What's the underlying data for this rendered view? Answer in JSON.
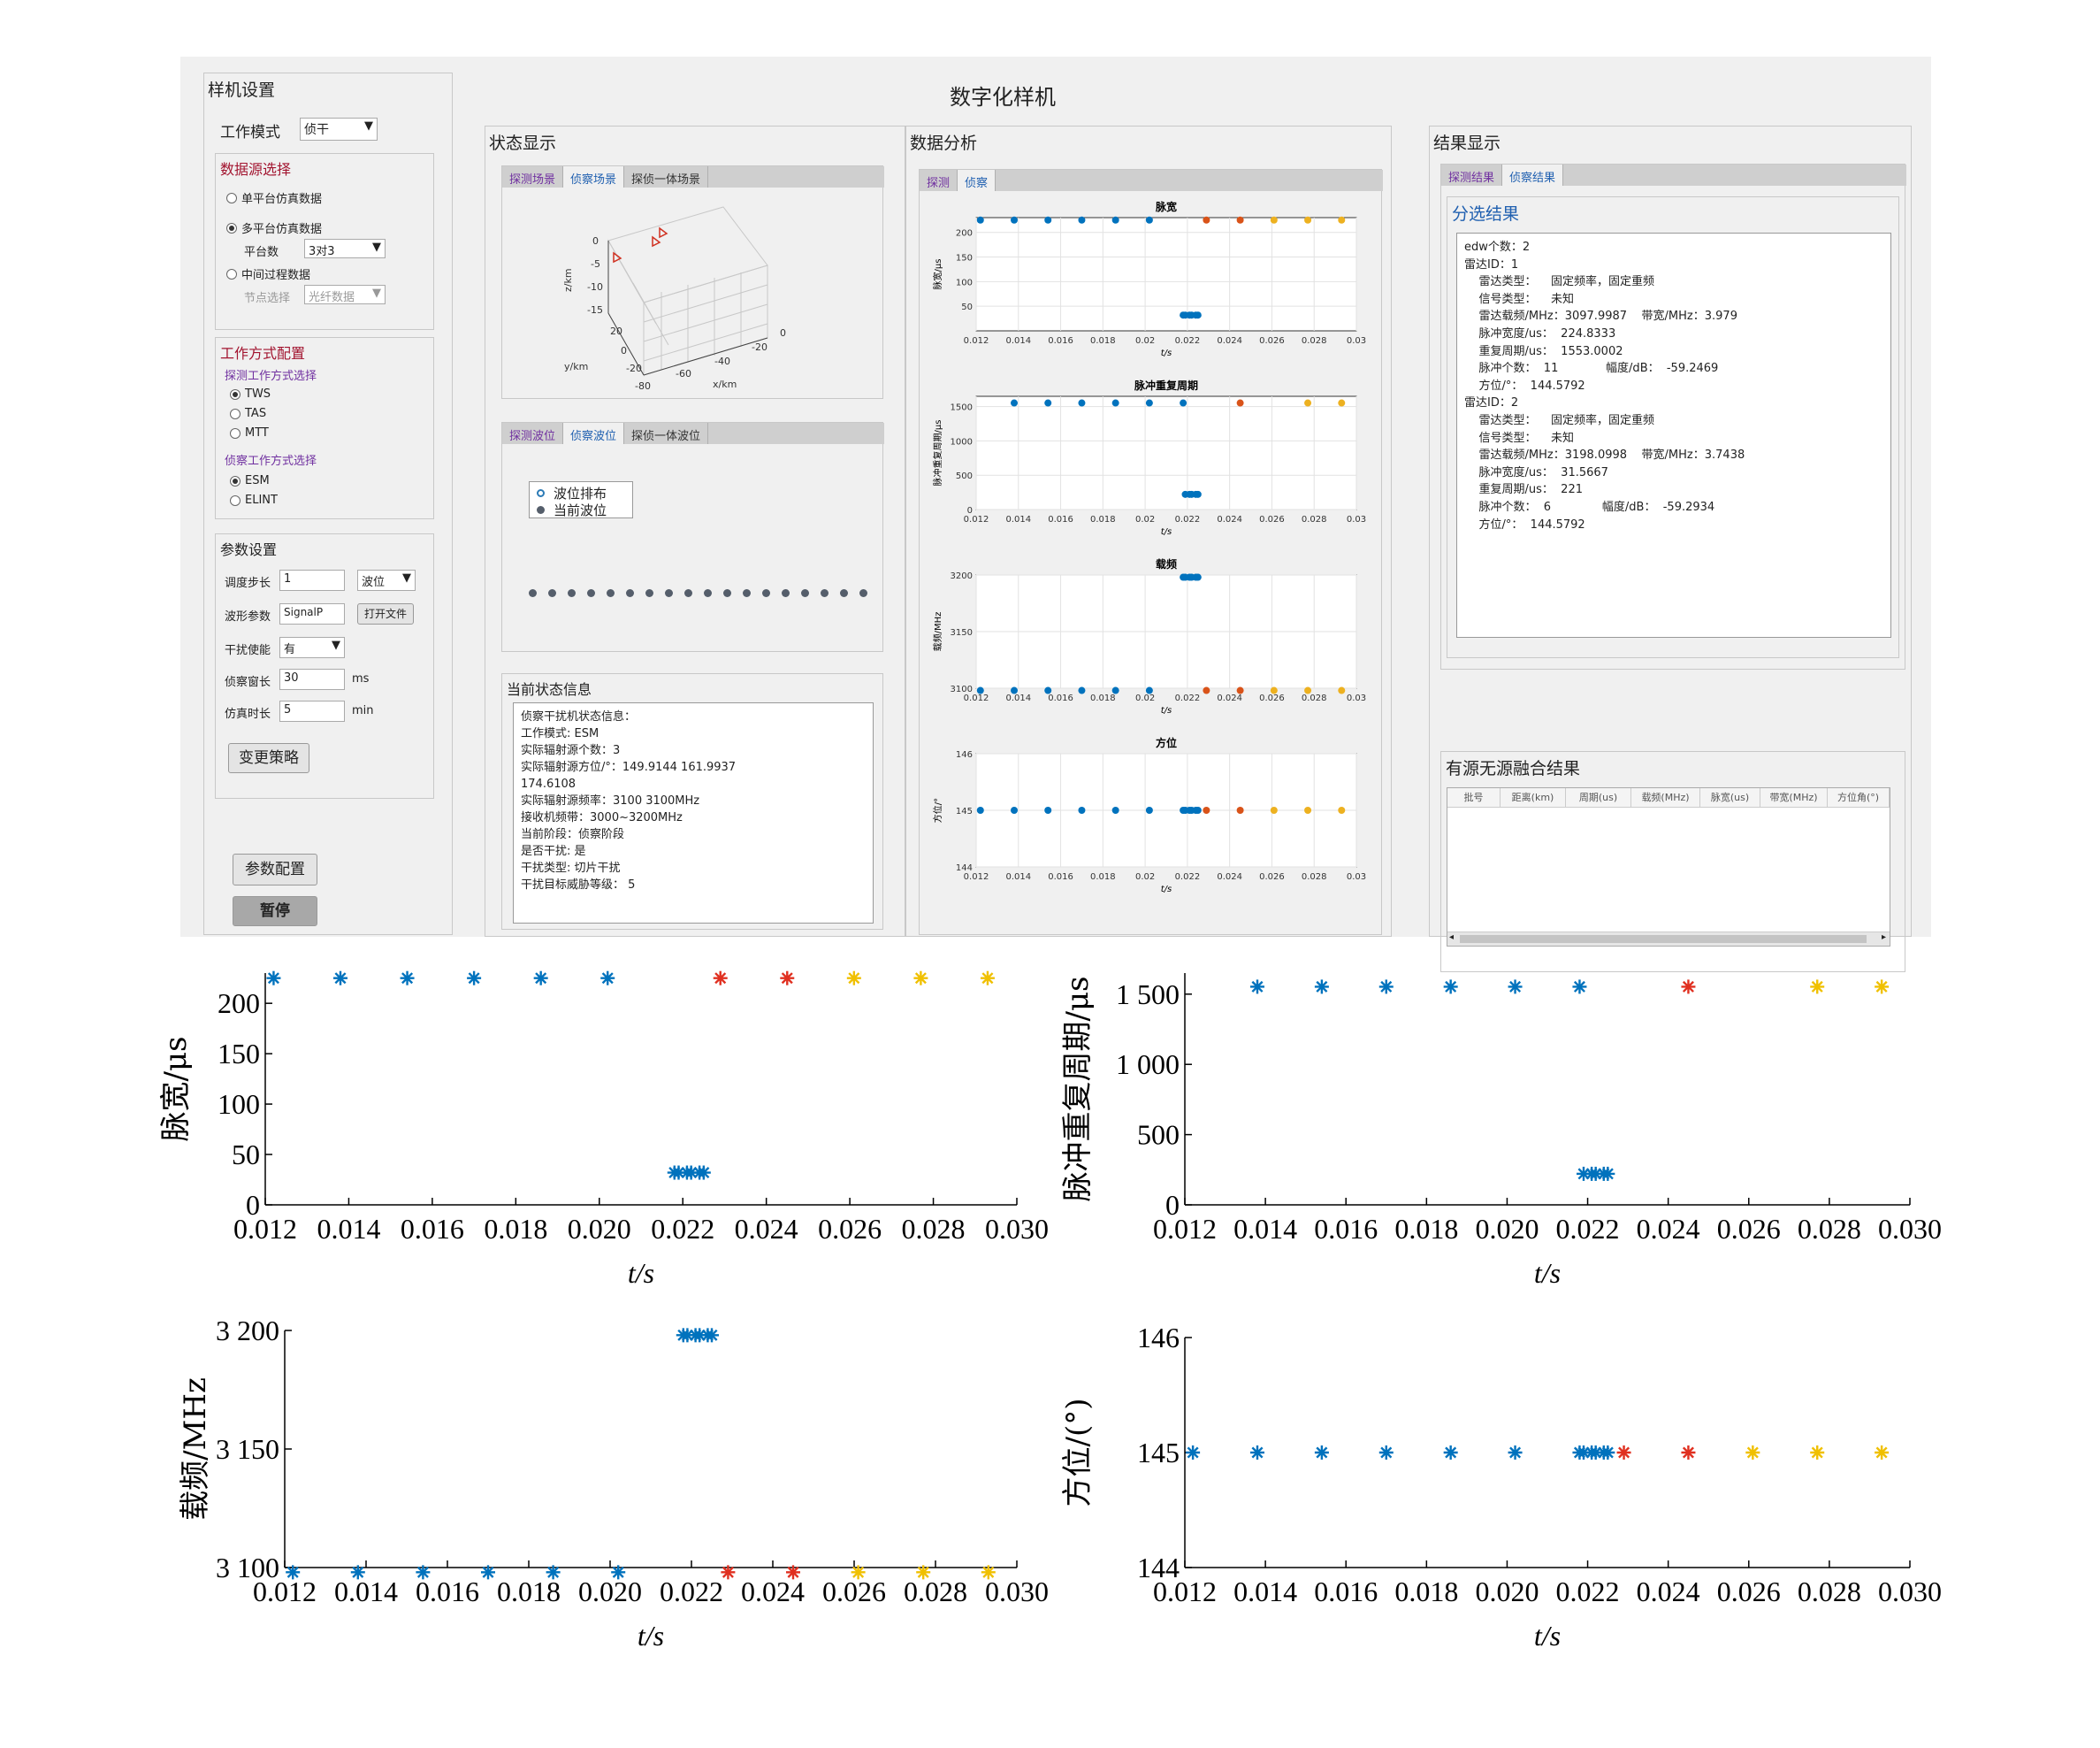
{
  "app": {
    "title": "数字化样机"
  },
  "settings": {
    "title": "样机设置",
    "mode_label": "工作模式",
    "mode_value": "侦干",
    "source": {
      "title": "数据源选择",
      "single": "单平台仿真数据",
      "multi": "多平台仿真数据",
      "platform_label": "平台数",
      "platform_value": "3对3",
      "middle": "中间过程数据",
      "node_label": "节点选择",
      "node_value": "光纤数据"
    },
    "work": {
      "title": "工作方式配置",
      "detect_title": "探测工作方式选择",
      "tws": "TWS",
      "tas": "TAS",
      "mtt": "MTT",
      "recon_title": "侦察工作方式选择",
      "esm": "ESM",
      "elint": "ELINT"
    },
    "params": {
      "title": "参数设置",
      "step_label": "调度步长",
      "step_value": "1",
      "step_unit": "波位",
      "wave_label": "波形参数",
      "wave_value": "SignalP",
      "open_file": "打开文件",
      "jam_label": "干扰使能",
      "jam_value": "有",
      "window_label": "侦察窗长",
      "window_value": "30",
      "window_unit": "ms",
      "simtime_label": "仿真时长",
      "simtime_value": "5",
      "simtime_unit": "min",
      "change_btn": "变更策略"
    },
    "config_btn": "参数配置",
    "pause_btn": "暂停"
  },
  "status": {
    "title": "状态显示",
    "scene_tabs": [
      "探测场景",
      "侦察场景",
      "探侦一体场景"
    ],
    "scene_axes": {
      "z": "z/km",
      "y": "y/km",
      "x": "x/km",
      "zticks": [
        "0",
        "-5",
        "-10",
        "-15"
      ],
      "yticks": [
        "20",
        "0",
        "-20"
      ],
      "xticks": [
        "-80",
        "-60",
        "-40",
        "-20",
        "0"
      ]
    },
    "wave_tabs": [
      "探测波位",
      "侦察波位",
      "探侦一体波位"
    ],
    "legend": [
      "波位排布",
      "当前波位"
    ],
    "info_title": "当前状态信息",
    "info_lines": [
      "侦察干扰机状态信息：",
      "工作模式: ESM",
      "实际辐射源个数：3",
      "实际辐射源方位/°：149.9144    161.9937",
      "174.6108",
      "实际辐射源频率：3100  3100MHz",
      "接收机频带：3000~3200MHz",
      "当前阶段：侦察阶段",
      "是否干扰: 是",
      "干扰类型: 切片干扰",
      "干扰目标威胁等级： 5"
    ]
  },
  "analysis": {
    "title": "数据分析",
    "tabs": [
      "探测",
      "侦察"
    ],
    "xlabel": "t/s",
    "xticks": [
      "0.012",
      "0.014",
      "0.016",
      "0.018",
      "0.02",
      "0.022",
      "0.024",
      "0.026",
      "0.028",
      "0.03"
    ],
    "plots": [
      {
        "title": "脉宽",
        "ylabel": "脉宽/μs",
        "yticks": [
          "200",
          "150",
          "100",
          "50"
        ]
      },
      {
        "title": "脉冲重复周期",
        "ylabel": "脉冲重复周期/μs",
        "yticks": [
          "1500",
          "1000",
          "500",
          "0"
        ]
      },
      {
        "title": "载频",
        "ylabel": "载频/MHz",
        "yticks": [
          "3200",
          "3150",
          "3100"
        ]
      },
      {
        "title": "方位",
        "ylabel": "方位/°",
        "yticks": [
          "146",
          "145",
          "144"
        ]
      }
    ]
  },
  "results": {
    "title": "结果显示",
    "tabs": [
      "探测结果",
      "侦察结果"
    ],
    "sort_title": "分选结果",
    "lines": [
      "edw个数：2",
      "雷达ID：1",
      "    雷达类型：    固定频率，固定重频",
      "    信号类型：    未知",
      "    雷达载频/MHz：3097.9987    带宽/MHz：3.979",
      "    脉冲宽度/us：  224.8333",
      "    重复周期/us：  1553.0002",
      "    脉冲个数：  11             幅度/dB：  -59.2469",
      "    方位/°：  144.5792",
      "雷达ID：2",
      "    雷达类型：    固定频率，固定重频",
      "    信号类型：    未知",
      "    雷达载频/MHz：3198.0998    带宽/MHz：3.7438",
      "    脉冲宽度/us：  31.5667",
      "    重复周期/us：  221",
      "    脉冲个数：  6              幅度/dB：  -59.2934",
      "    方位/°：  144.5792"
    ],
    "fusion_title": "有源无源融合结果",
    "fusion_cols": [
      "批号",
      "距离(km)",
      "周期(us)",
      "载频(MHz)",
      "脉宽(us)",
      "带宽(MHz)",
      "方位角(°)"
    ]
  },
  "colors": {
    "blue": "#0072bd",
    "red": "#d95319",
    "yellow": "#edb120",
    "red_star": "#e03020",
    "yellow_star": "#f0c000"
  },
  "figures": {
    "xlabel": "t/s",
    "xticks": [
      "0.012",
      "0.014",
      "0.016",
      "0.018",
      "0.020",
      "0.022",
      "0.024",
      "0.026",
      "0.028",
      "0.030"
    ],
    "panels": [
      {
        "ylabel": "脉宽/μs",
        "yticks": [
          "200",
          "150",
          "100",
          "50",
          "0"
        ]
      },
      {
        "ylabel": "脉冲重复周期/μs",
        "yticks": [
          "1 500",
          "1 000",
          "500",
          "0"
        ]
      },
      {
        "ylabel": "载频/MHz",
        "yticks": [
          "3 200",
          "3 150",
          "3 100"
        ]
      },
      {
        "ylabel": "方位/(°)",
        "yticks": [
          "146",
          "145",
          "144"
        ]
      }
    ]
  },
  "chart_data": [
    {
      "type": "scatter",
      "ylabel": "脉宽/μs",
      "xlabel": "t/s",
      "xlim": [
        0.012,
        0.03
      ],
      "ylim": [
        0,
        230
      ],
      "series": [
        {
          "color": "blue",
          "x": [
            0.0122,
            0.0138,
            0.0154,
            0.017,
            0.0186,
            0.0202,
            0.0218,
            0.0219,
            0.0221,
            0.0222,
            0.0224,
            0.0225
          ],
          "y": [
            225,
            225,
            225,
            225,
            225,
            225,
            32,
            32,
            32,
            32,
            32,
            32
          ]
        },
        {
          "color": "red",
          "x": [
            0.0229,
            0.0245
          ],
          "y": [
            225,
            225
          ]
        },
        {
          "color": "yellow",
          "x": [
            0.0261,
            0.0277,
            0.0293
          ],
          "y": [
            225,
            225,
            225
          ]
        }
      ]
    },
    {
      "type": "scatter",
      "ylabel": "脉冲重复周期/μs",
      "xlabel": "t/s",
      "xlim": [
        0.012,
        0.03
      ],
      "ylim": [
        0,
        1650
      ],
      "series": [
        {
          "color": "blue",
          "x": [
            0.0138,
            0.0154,
            0.017,
            0.0186,
            0.0202,
            0.0218,
            0.0219,
            0.0221,
            0.0222,
            0.0224,
            0.0225
          ],
          "y": [
            1553,
            1553,
            1553,
            1553,
            1553,
            1553,
            221,
            221,
            221,
            221,
            221
          ]
        },
        {
          "color": "red",
          "x": [
            0.0245
          ],
          "y": [
            1553
          ]
        },
        {
          "color": "yellow",
          "x": [
            0.0277,
            0.0293
          ],
          "y": [
            1553,
            1553
          ]
        }
      ]
    },
    {
      "type": "scatter",
      "ylabel": "载频/MHz",
      "xlabel": "t/s",
      "xlim": [
        0.012,
        0.03
      ],
      "ylim": [
        3100,
        3200
      ],
      "series": [
        {
          "color": "blue",
          "x": [
            0.0122,
            0.0138,
            0.0154,
            0.017,
            0.0186,
            0.0202,
            0.0218,
            0.0219,
            0.0221,
            0.0222,
            0.0224,
            0.0225
          ],
          "y": [
            3098,
            3098,
            3098,
            3098,
            3098,
            3098,
            3198,
            3198,
            3198,
            3198,
            3198,
            3198
          ]
        },
        {
          "color": "red",
          "x": [
            0.0229,
            0.0245
          ],
          "y": [
            3098,
            3098
          ]
        },
        {
          "color": "yellow",
          "x": [
            0.0261,
            0.0277,
            0.0293
          ],
          "y": [
            3098,
            3098,
            3098
          ]
        }
      ]
    },
    {
      "type": "scatter",
      "ylabel": "方位/(°)",
      "xlabel": "t/s",
      "xlim": [
        0.012,
        0.03
      ],
      "ylim": [
        144,
        146
      ],
      "series": [
        {
          "color": "blue",
          "x": [
            0.0122,
            0.0138,
            0.0154,
            0.017,
            0.0186,
            0.0202,
            0.0218,
            0.0219,
            0.0221,
            0.0222,
            0.0224,
            0.0225
          ],
          "y": [
            145,
            145,
            145,
            145,
            145,
            145,
            145,
            145,
            145,
            145,
            145,
            145
          ]
        },
        {
          "color": "red",
          "x": [
            0.0229,
            0.0245
          ],
          "y": [
            145,
            145
          ]
        },
        {
          "color": "yellow",
          "x": [
            0.0261,
            0.0277,
            0.0293
          ],
          "y": [
            145,
            145,
            145
          ]
        }
      ]
    }
  ]
}
